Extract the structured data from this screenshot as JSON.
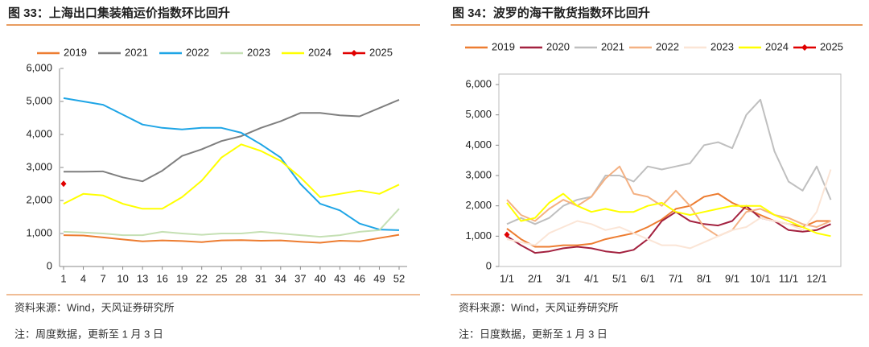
{
  "chart_data": [
    {
      "type": "line",
      "title": "图 33：上海出口集装箱运价指数环比回升",
      "x": [
        1,
        4,
        7,
        10,
        13,
        16,
        19,
        22,
        25,
        28,
        31,
        34,
        37,
        40,
        43,
        46,
        49,
        52
      ],
      "xlim": [
        1,
        52
      ],
      "xticks": [
        1,
        4,
        7,
        10,
        13,
        16,
        19,
        22,
        25,
        28,
        31,
        34,
        37,
        40,
        43,
        46,
        49,
        52
      ],
      "ylim": [
        0,
        6000
      ],
      "yticks": [
        0,
        {
          "value": 1000,
          "label": "1,000"
        },
        {
          "value": 2000,
          "label": "2,000"
        },
        {
          "value": 3000,
          "label": "3,000"
        },
        {
          "value": 4000,
          "label": "4,000"
        },
        {
          "value": 5000,
          "label": "5,000"
        },
        {
          "value": 6000,
          "label": "6,000"
        }
      ],
      "series": [
        {
          "name": "2019",
          "color": "#ed7d31",
          "values": [
            950,
            940,
            880,
            820,
            760,
            790,
            770,
            740,
            790,
            800,
            780,
            790,
            750,
            720,
            780,
            760,
            860,
            960
          ]
        },
        {
          "name": "2021",
          "color": "#7f7f7f",
          "values": [
            2870,
            2870,
            2880,
            2700,
            2580,
            2900,
            3350,
            3550,
            3800,
            3950,
            4200,
            4400,
            4650,
            4650,
            4580,
            4550,
            4800,
            5050
          ]
        },
        {
          "name": "2022",
          "color": "#1ea5e6",
          "values": [
            5100,
            5000,
            4900,
            4600,
            4300,
            4200,
            4150,
            4200,
            4200,
            4050,
            3700,
            3300,
            2500,
            1900,
            1700,
            1300,
            1120,
            1100
          ]
        },
        {
          "name": "2023",
          "color": "#c5e0b4",
          "values": [
            1050,
            1030,
            1000,
            950,
            950,
            1050,
            1000,
            960,
            1000,
            1000,
            1050,
            1000,
            950,
            900,
            950,
            1050,
            1100,
            1750
          ]
        },
        {
          "name": "2024",
          "color": "#ffff00",
          "values": [
            1900,
            2200,
            2150,
            1900,
            1750,
            1750,
            2100,
            2600,
            3300,
            3700,
            3500,
            3200,
            2700,
            2100,
            2200,
            2300,
            2200,
            2480
          ]
        },
        {
          "name": "2025",
          "color": "#e00000",
          "values": [
            2505,
            null,
            null,
            null,
            null,
            null,
            null,
            null,
            null,
            null,
            null,
            null,
            null,
            null,
            null,
            null,
            null,
            null
          ]
        }
      ],
      "source": "资料来源：Wind，天风证券研究所",
      "note": "注：周度数据，更新至 1 月 3 日"
    },
    {
      "type": "line",
      "title": "图 34：波罗的海干散货指数环比回升",
      "categories": [
        "1/1",
        null,
        "2/1",
        null,
        "3/1",
        null,
        "4/1",
        null,
        "5/1",
        null,
        "6/1",
        null,
        "7/1",
        null,
        "8/1",
        null,
        "9/1",
        null,
        "10/1",
        null,
        "11/1",
        null,
        "12/1",
        null
      ],
      "ylim": [
        0,
        6000
      ],
      "yticks": [
        0,
        {
          "value": 1000,
          "label": "1,000"
        },
        {
          "value": 2000,
          "label": "2,000"
        },
        {
          "value": 3000,
          "label": "3,000"
        },
        {
          "value": 4000,
          "label": "4,000"
        },
        {
          "value": 5000,
          "label": "5,000"
        },
        {
          "value": 6000,
          "label": "6,000"
        }
      ],
      "series": [
        {
          "name": "2019",
          "color": "#ed7d31",
          "values": [
            1250,
            900,
            650,
            650,
            700,
            700,
            750,
            900,
            1000,
            1100,
            1300,
            1550,
            1900,
            2000,
            2300,
            2400,
            2100,
            1900,
            1700,
            1500,
            1400,
            1300,
            1500,
            1500
          ]
        },
        {
          "name": "2020",
          "color": "#a3213f",
          "values": [
            1000,
            700,
            450,
            500,
            600,
            650,
            600,
            500,
            450,
            550,
            900,
            1500,
            1800,
            1500,
            1400,
            1350,
            1500,
            2000,
            1600,
            1500,
            1200,
            1150,
            1200,
            1400
          ]
        },
        {
          "name": "2021",
          "color": "#bfbfbf",
          "values": [
            1400,
            1600,
            1400,
            1600,
            2000,
            2200,
            2300,
            3000,
            3000,
            2800,
            3300,
            3200,
            3300,
            3400,
            4000,
            4100,
            3900,
            5000,
            5500,
            3800,
            2800,
            2500,
            3300,
            2200
          ]
        },
        {
          "name": "2022",
          "color": "#f4b183",
          "values": [
            2200,
            1700,
            1500,
            1900,
            2200,
            2000,
            2300,
            2900,
            3300,
            2400,
            2300,
            2000,
            2500,
            2000,
            1300,
            1000,
            1200,
            1800,
            1900,
            1700,
            1600,
            1400,
            1300,
            1500
          ]
        },
        {
          "name": "2023",
          "color": "#fbe5d6",
          "values": [
            900,
            800,
            700,
            1100,
            1300,
            1500,
            1400,
            1200,
            1300,
            1100,
            900,
            700,
            700,
            600,
            800,
            1000,
            1200,
            1300,
            1600,
            1500,
            1400,
            1200,
            1800,
            3200
          ]
        },
        {
          "name": "2024",
          "color": "#ffff00",
          "values": [
            2100,
            1500,
            1600,
            2100,
            2400,
            2000,
            1800,
            1900,
            1800,
            1800,
            2000,
            2100,
            1800,
            1700,
            1800,
            1900,
            2000,
            2000,
            2000,
            1700,
            1500,
            1300,
            1100,
            1000
          ]
        },
        {
          "name": "2025",
          "color": "#e00000",
          "values": [
            1050,
            null,
            null,
            null,
            null,
            null,
            null,
            null,
            null,
            null,
            null,
            null,
            null,
            null,
            null,
            null,
            null,
            null,
            null,
            null,
            null,
            null,
            null,
            null
          ]
        }
      ],
      "source": "资料来源：Wind，天风证券研究所",
      "note": "注：日度数据，更新至 1 月 3 日"
    }
  ]
}
